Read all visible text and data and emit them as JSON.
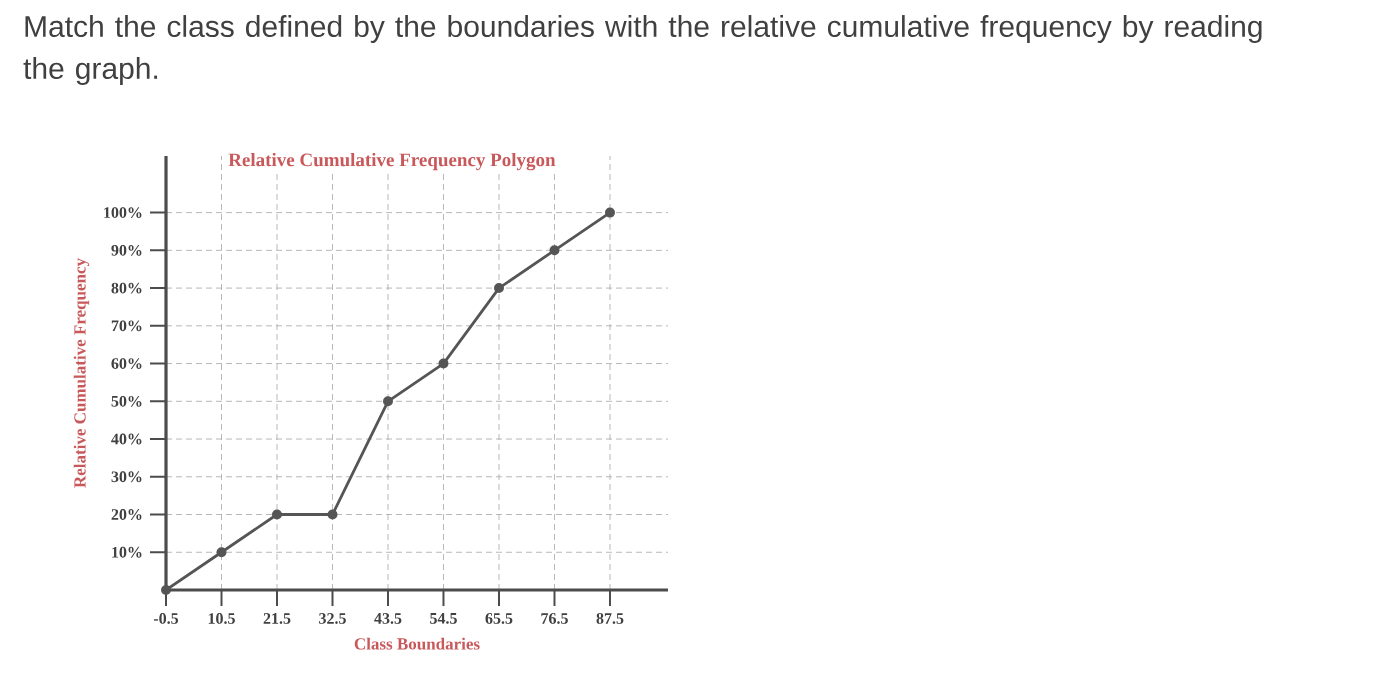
{
  "chart_data": {
    "type": "line",
    "title": "Relative Cumulative Frequency Polygon",
    "xlabel": "Class Boundaries",
    "ylabel": "Relative Cumulative Frequency",
    "annotations": [
      "Match the class defined by the boundaries with the relative cumulative frequency by reading the graph."
    ],
    "x": [
      -0.5,
      10.5,
      21.5,
      32.5,
      43.5,
      54.5,
      65.5,
      76.5,
      87.5
    ],
    "series": [
      {
        "color": "#555555",
        "values": [
          0,
          10,
          20,
          20,
          50,
          60,
          80,
          90,
          100
        ]
      }
    ],
    "xlim": [
      -0.5,
      99
    ],
    "ylim": [
      0,
      115
    ],
    "xticks": [
      -0.5,
      10.5,
      21.5,
      32.5,
      43.5,
      54.5,
      65.5,
      76.5,
      87.5
    ],
    "yticks": [
      {
        "value": 10,
        "label": "10%"
      },
      {
        "value": 20,
        "label": "20%"
      },
      {
        "value": 30,
        "label": "30%"
      },
      {
        "value": 40,
        "label": "40%"
      },
      {
        "value": 50,
        "label": "50%"
      },
      {
        "value": 60,
        "label": "60%"
      },
      {
        "value": 70,
        "label": "70%"
      },
      {
        "value": 80,
        "label": "80%"
      },
      {
        "value": 90,
        "label": "90%"
      },
      {
        "value": 100,
        "label": "100%"
      }
    ],
    "grid": true,
    "marker": "circle",
    "line_style": "solid"
  }
}
